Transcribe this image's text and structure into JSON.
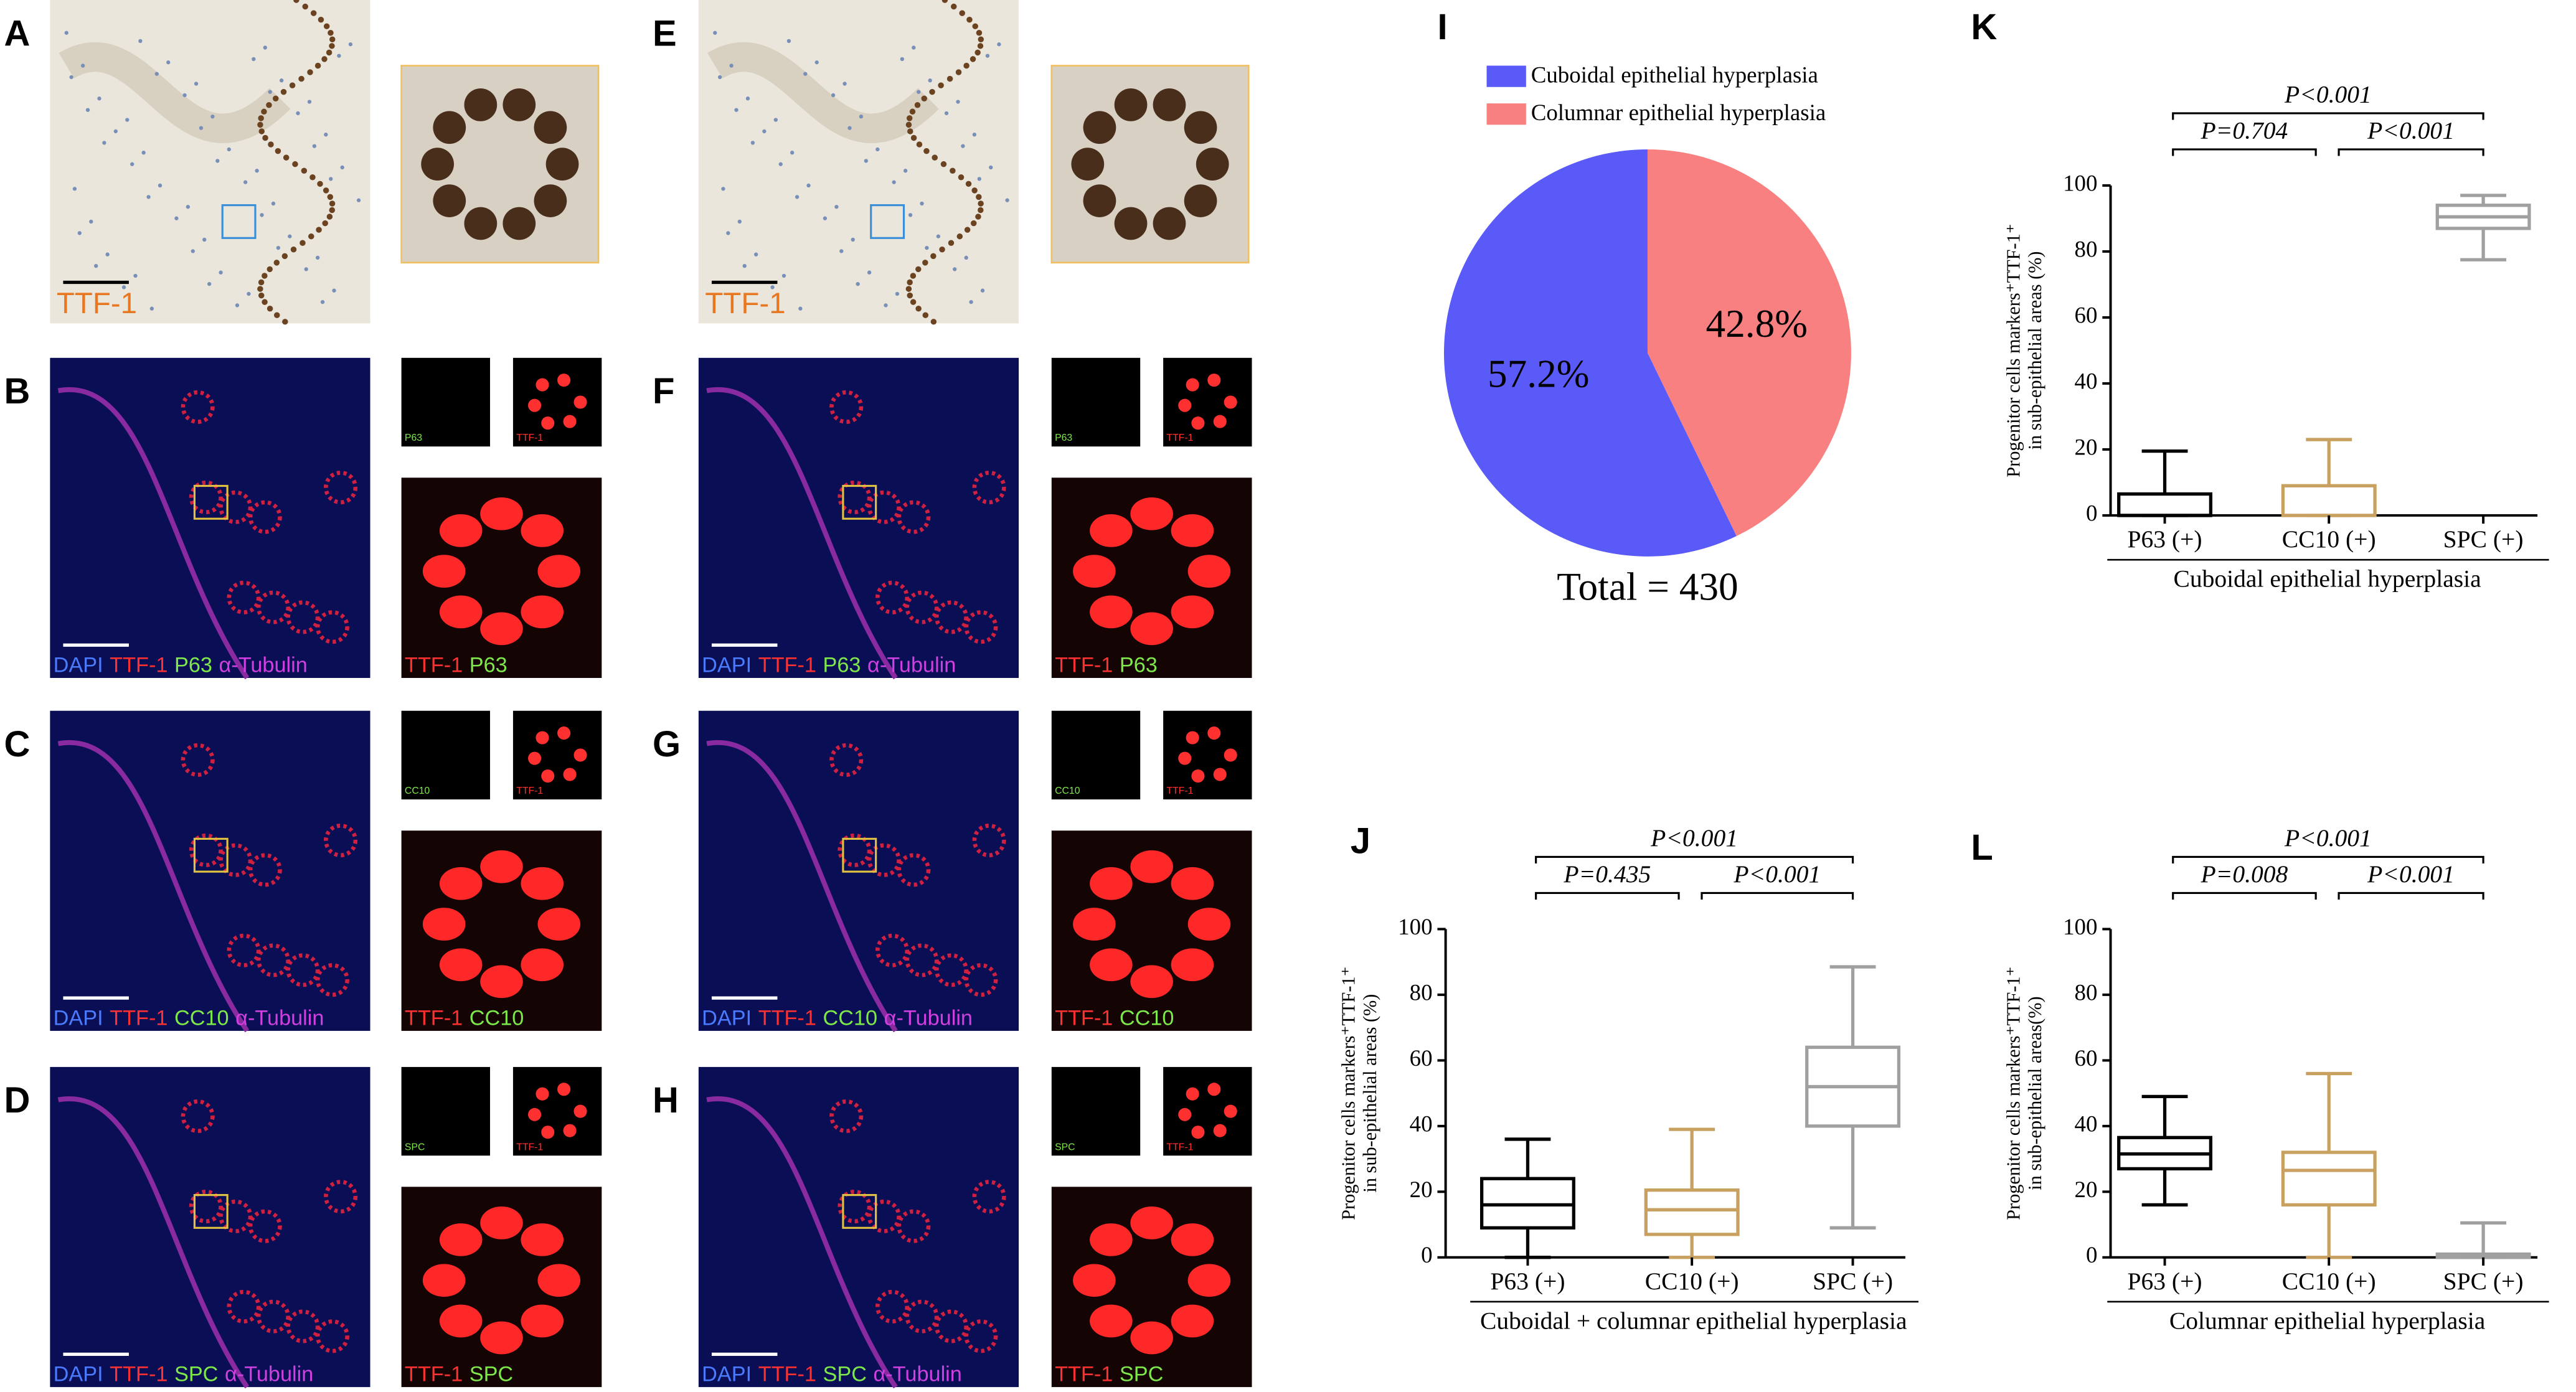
{
  "image_panels": [
    {
      "letter": "A",
      "stain": "TTF-1"
    },
    {
      "letter": "B",
      "legend": [
        {
          "name": "DAPI",
          "color": "#4a7bff"
        },
        {
          "name": "TTF-1",
          "color": "#ff3030"
        },
        {
          "name": "P63",
          "color": "#7ee84a"
        },
        {
          "name": "α-Tubulin",
          "color": "#d040e0"
        }
      ],
      "inset_labels": [
        {
          "name": "P63",
          "color": "#7ee84a"
        },
        {
          "name": "TTF-1",
          "color": "#ff3030"
        }
      ],
      "zoom_legend": [
        {
          "name": "TTF-1",
          "color": "#ff3030"
        },
        {
          "name": "P63",
          "color": "#7ee84a"
        }
      ]
    },
    {
      "letter": "C",
      "legend": [
        {
          "name": "DAPI",
          "color": "#4a7bff"
        },
        {
          "name": "TTF-1",
          "color": "#ff3030"
        },
        {
          "name": "CC10",
          "color": "#7ee84a"
        },
        {
          "name": "α-Tubulin",
          "color": "#d040e0"
        }
      ],
      "inset_labels": [
        {
          "name": "CC10",
          "color": "#7ee84a"
        },
        {
          "name": "TTF-1",
          "color": "#ff3030"
        }
      ],
      "zoom_legend": [
        {
          "name": "TTF-1",
          "color": "#ff3030"
        },
        {
          "name": "CC10",
          "color": "#7ee84a"
        }
      ]
    },
    {
      "letter": "D",
      "legend": [
        {
          "name": "DAPI",
          "color": "#4a7bff"
        },
        {
          "name": "TTF-1",
          "color": "#ff3030"
        },
        {
          "name": "SPC",
          "color": "#7ee84a"
        },
        {
          "name": "α-Tubulin",
          "color": "#d040e0"
        }
      ],
      "inset_labels": [
        {
          "name": "SPC",
          "color": "#7ee84a"
        },
        {
          "name": "TTF-1",
          "color": "#ff3030"
        }
      ],
      "zoom_legend": [
        {
          "name": "TTF-1",
          "color": "#ff3030"
        },
        {
          "name": "SPC",
          "color": "#7ee84a"
        }
      ]
    },
    {
      "letter": "E",
      "stain": "TTF-1"
    },
    {
      "letter": "F",
      "legend": [
        {
          "name": "DAPI",
          "color": "#4a7bff"
        },
        {
          "name": "TTF-1",
          "color": "#ff3030"
        },
        {
          "name": "P63",
          "color": "#7ee84a"
        },
        {
          "name": "α-Tubulin",
          "color": "#d040e0"
        }
      ],
      "inset_labels": [
        {
          "name": "P63",
          "color": "#7ee84a"
        },
        {
          "name": "TTF-1",
          "color": "#ff3030"
        }
      ],
      "zoom_legend": [
        {
          "name": "TTF-1",
          "color": "#ff3030"
        },
        {
          "name": "P63",
          "color": "#7ee84a"
        }
      ]
    },
    {
      "letter": "G",
      "legend": [
        {
          "name": "DAPI",
          "color": "#4a7bff"
        },
        {
          "name": "TTF-1",
          "color": "#ff3030"
        },
        {
          "name": "CC10",
          "color": "#7ee84a"
        },
        {
          "name": "α-Tubulin",
          "color": "#d040e0"
        }
      ],
      "inset_labels": [
        {
          "name": "CC10",
          "color": "#7ee84a"
        },
        {
          "name": "TTF-1",
          "color": "#ff3030"
        }
      ],
      "zoom_legend": [
        {
          "name": "TTF-1",
          "color": "#ff3030"
        },
        {
          "name": "CC10",
          "color": "#7ee84a"
        }
      ]
    },
    {
      "letter": "H",
      "legend": [
        {
          "name": "DAPI",
          "color": "#4a7bff"
        },
        {
          "name": "TTF-1",
          "color": "#ff3030"
        },
        {
          "name": "SPC",
          "color": "#7ee84a"
        },
        {
          "name": "α-Tubulin",
          "color": "#d040e0"
        }
      ],
      "inset_labels": [
        {
          "name": "SPC",
          "color": "#7ee84a"
        },
        {
          "name": "TTF-1",
          "color": "#ff3030"
        }
      ],
      "zoom_legend": [
        {
          "name": "TTF-1",
          "color": "#ff3030"
        },
        {
          "name": "SPC",
          "color": "#7ee84a"
        }
      ]
    }
  ],
  "chart_data": [
    {
      "type": "pie",
      "panel": "I",
      "categories": [
        "Cuboidal epithelial hyperplasia",
        "Columnar epithelial hyperplasia"
      ],
      "values": [
        57.2,
        42.8
      ],
      "value_labels": [
        "57.2%",
        "42.8%"
      ],
      "colors": [
        "#5a5af8",
        "#f88080"
      ],
      "total": "Total = 430"
    },
    {
      "type": "box",
      "panel": "J",
      "categories": [
        "P63 (+)",
        "CC10 (+)",
        "SPC (+)"
      ],
      "colors": [
        "#000000",
        "#c8a060",
        "#a0a0a0"
      ],
      "whisker_low": [
        0,
        0,
        9
      ],
      "q1": [
        9,
        7,
        40
      ],
      "median": [
        16,
        14.5,
        52
      ],
      "q3": [
        24,
        20.5,
        64
      ],
      "whisker_high": [
        36,
        39,
        88.5
      ],
      "ylim": [
        0,
        100
      ],
      "yticks": [
        0,
        20,
        40,
        60,
        80,
        100
      ],
      "ylabel": [
        "Progenitor cells markers⁺TTF-1⁺",
        "in sub-epithelial areas (%)"
      ],
      "xlabel": "Cuboidal + columnar epithelial hyperplasia",
      "p_values": [
        "P=0.435",
        "P<0.001",
        "P<0.001"
      ]
    },
    {
      "type": "box",
      "panel": "K",
      "categories": [
        "P63 (+)",
        "CC10 (+)",
        "SPC (+)"
      ],
      "colors": [
        "#000000",
        "#c8a060",
        "#a0a0a0"
      ],
      "whisker_low": [
        0,
        0,
        77.5
      ],
      "q1": [
        0,
        0,
        87
      ],
      "median": [
        0,
        0,
        90.5
      ],
      "q3": [
        6.5,
        9,
        94
      ],
      "whisker_high": [
        19.5,
        23,
        97
      ],
      "ylim": [
        0,
        100
      ],
      "yticks": [
        0,
        20,
        40,
        60,
        80,
        100
      ],
      "ylabel": [
        "Progenitor cells markers⁺TTF-1⁺",
        "in sub-epithelial areas (%)"
      ],
      "xlabel": "Cuboidal epithelial hyperplasia",
      "p_values": [
        "P=0.704",
        "P<0.001",
        "P<0.001"
      ]
    },
    {
      "type": "box",
      "panel": "L",
      "categories": [
        "P63 (+)",
        "CC10 (+)",
        "SPC (+)"
      ],
      "colors": [
        "#000000",
        "#c8a060",
        "#a0a0a0"
      ],
      "whisker_low": [
        16,
        0,
        0
      ],
      "q1": [
        27,
        16,
        0
      ],
      "median": [
        31.5,
        26.5,
        0
      ],
      "q3": [
        36.5,
        32,
        1
      ],
      "whisker_high": [
        49,
        56,
        10.5
      ],
      "ylim": [
        0,
        100
      ],
      "yticks": [
        0,
        20,
        40,
        60,
        80,
        100
      ],
      "ylabel": [
        "Progenitor cells markers⁺TTF-1⁺",
        "in sub-epithelial areas(%)"
      ],
      "xlabel": "Columnar epithelial hyperplasia",
      "p_values": [
        "P=0.008",
        "P<0.001",
        "P<0.001"
      ]
    }
  ]
}
